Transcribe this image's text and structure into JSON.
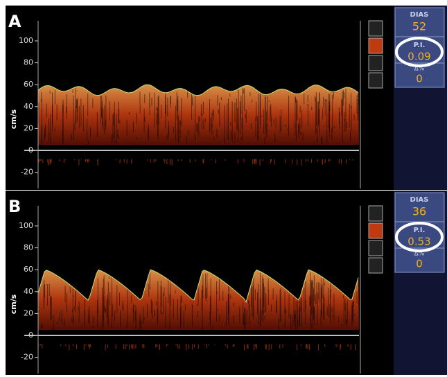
{
  "panels": [
    {
      "letter": "A",
      "y_label": "cm/s",
      "yticks": [
        100,
        80,
        60,
        40,
        20,
        0,
        -20
      ],
      "dias_label": "DIAS",
      "dias_value": "52",
      "pi_label": "P.I.",
      "pi_value": "0.09",
      "delta_label": "Δ%",
      "delta_value": "0"
    },
    {
      "letter": "B",
      "y_label": "cm/s",
      "yticks": [
        100,
        80,
        60,
        40,
        20,
        0,
        -20
      ],
      "dias_label": "DIAS",
      "dias_value": "36",
      "pi_label": "P.I.",
      "pi_value": "0.53",
      "delta_label": "Δ%",
      "delta_value": "0"
    }
  ]
}
